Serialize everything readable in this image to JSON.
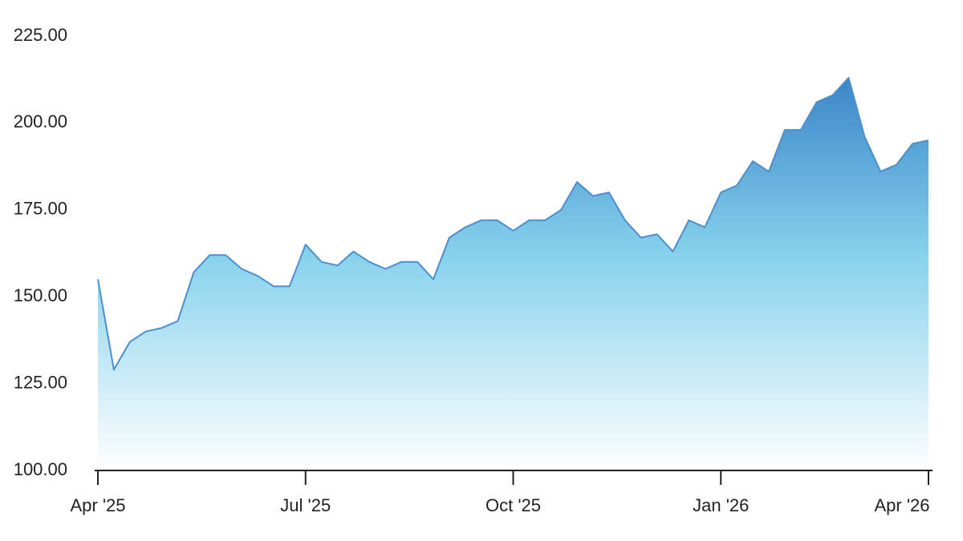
{
  "chart_data": {
    "type": "area",
    "categories": [
      "Apr '25",
      null,
      null,
      null,
      null,
      null,
      null,
      null,
      null,
      null,
      null,
      null,
      null,
      "Jul '25",
      null,
      null,
      null,
      null,
      null,
      null,
      null,
      null,
      null,
      null,
      null,
      null,
      "Oct '25",
      null,
      null,
      null,
      null,
      null,
      null,
      null,
      null,
      null,
      null,
      null,
      null,
      "Jan '26",
      null,
      null,
      null,
      null,
      null,
      null,
      null,
      null,
      null,
      null,
      null,
      null,
      "Apr '26"
    ],
    "values": [
      155,
      129,
      137,
      140,
      141,
      143,
      157,
      162,
      162,
      158,
      156,
      153,
      153,
      165,
      160,
      159,
      163,
      160,
      158,
      160,
      160,
      155,
      167,
      170,
      172,
      172,
      169,
      172,
      172,
      175,
      183,
      179,
      180,
      172,
      167,
      168,
      163,
      172,
      170,
      180,
      182,
      189,
      186,
      198,
      198,
      206,
      208,
      213,
      196,
      186,
      188,
      194,
      195
    ],
    "color": "#4a8fd0",
    "ylim": [
      100,
      225
    ],
    "yticks": [
      {
        "value": 100,
        "label": "100.00"
      },
      {
        "value": 125,
        "label": "125.00"
      },
      {
        "value": 150,
        "label": "150.00"
      },
      {
        "value": 175,
        "label": "175.00"
      },
      {
        "value": 200,
        "label": "200.00"
      },
      {
        "value": 225,
        "label": "225.00"
      }
    ],
    "grid": false
  }
}
